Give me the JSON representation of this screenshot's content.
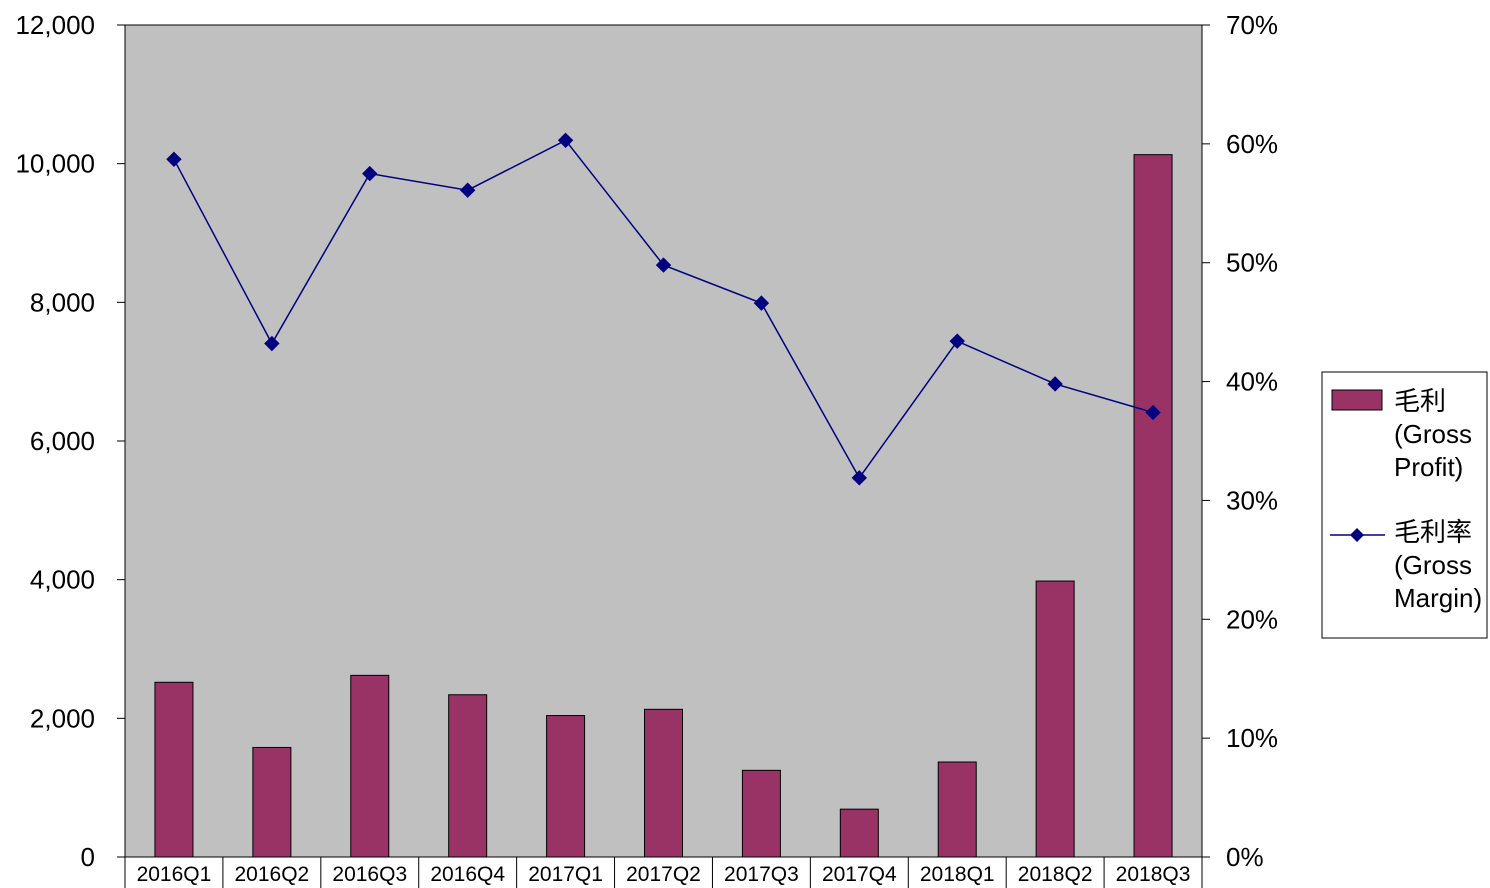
{
  "chart_data": {
    "type": "bar+line",
    "categories": [
      "2016Q1",
      "2016Q2",
      "2016Q3",
      "2016Q4",
      "2017Q1",
      "2017Q2",
      "2017Q3",
      "2017Q4",
      "2018Q1",
      "2018Q2",
      "2018Q3"
    ],
    "series": [
      {
        "name": "毛利 (Gross Profit)",
        "type": "bar",
        "axis": "left",
        "color": "#993366",
        "values": [
          2520,
          1580,
          2620,
          2340,
          2040,
          2130,
          1250,
          690,
          1370,
          3980,
          10130
        ]
      },
      {
        "name": "毛利率 (Gross Margin)",
        "type": "line",
        "axis": "right",
        "color": "#000080",
        "marker": "diamond",
        "values": [
          0.587,
          0.432,
          0.575,
          0.561,
          0.603,
          0.498,
          0.466,
          0.319,
          0.434,
          0.398,
          0.374
        ]
      }
    ],
    "y_left": {
      "min": 0,
      "max": 12000,
      "ticks": [
        "0",
        "2,000",
        "4,000",
        "6,000",
        "8,000",
        "10,000",
        "12,000"
      ]
    },
    "y_right": {
      "min": 0,
      "max": 0.7,
      "ticks": [
        "0%",
        "10%",
        "20%",
        "30%",
        "40%",
        "50%",
        "60%",
        "70%"
      ]
    },
    "plot_background": "#c0c0c0",
    "grid": false,
    "legend": {
      "position": "right",
      "entries": [
        {
          "lines": [
            "毛利",
            "(Gross",
            "Profit)"
          ]
        },
        {
          "lines": [
            "毛利率",
            "(Gross",
            "Margin)"
          ]
        }
      ]
    }
  }
}
